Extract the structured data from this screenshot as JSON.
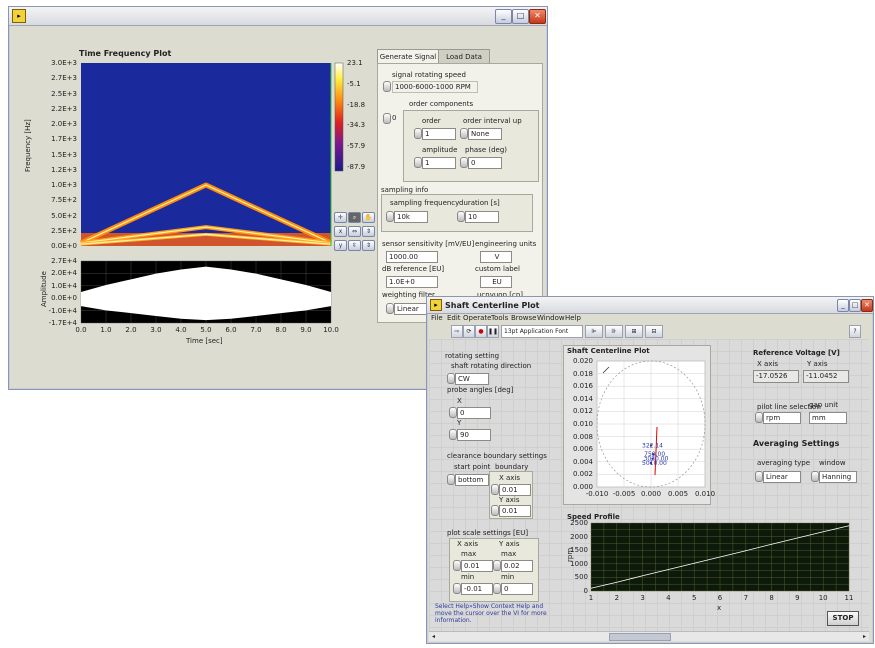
{
  "window1": {
    "plot_title": "Time Frequency Plot",
    "freq_axis_label": "Frequency [Hz]",
    "freq_ticks": [
      "3.0E+3",
      "2.7E+3",
      "2.5E+3",
      "2.2E+3",
      "2.0E+3",
      "1.7E+3",
      "1.5E+3",
      "1.2E+3",
      "1.0E+3",
      "7.5E+2",
      "5.0E+2",
      "2.5E+2",
      "0.0E+0"
    ],
    "colorbar_ticks": [
      "23.1",
      "-5.1",
      "-18.8",
      "-34.3",
      "-57.9",
      "-87.9"
    ],
    "amp_axis_label": "Amplitude",
    "amp_ticks": [
      "2.7E+4",
      "2.0E+4",
      "1.0E+4",
      "0.0E+0",
      "-1.0E+4",
      "-1.7E+4"
    ],
    "time_ticks": [
      "0.0",
      "1.0",
      "2.0",
      "3.0",
      "4.0",
      "5.0",
      "6.0",
      "7.0",
      "8.0",
      "9.0",
      "10.0"
    ],
    "time_axis_label": "Time [sec]",
    "tabs": [
      "Generate Signal",
      "Load Data"
    ],
    "signal_rotating_speed_label": "signal rotating speed",
    "signal_rotating_speed_value": "1000-6000-1000 RPM",
    "order_components_label": "order components",
    "order_index": "0",
    "order_label": "order",
    "order_value": "1",
    "order_interval_label": "order interval up",
    "order_interval_value": "None",
    "amplitude_label": "amplitude",
    "amplitude_value": "1",
    "phase_label": "phase (deg)",
    "phase_value": "0",
    "sampling_info_label": "sampling info",
    "sampling_frequency_label": "sampling frequency",
    "sampling_frequency_value": "10k",
    "duration_label": "duration [s]",
    "duration_value": "10",
    "sensor_sensitivity_label": "sensor sensitivity [mV/EU]",
    "sensor_sensitivity_value": "1000.00",
    "engineering_units_label": "engineering units",
    "engineering_units_value": "V",
    "db_reference_label": "dB reference [EU]",
    "db_reference_value": "1.0E+0",
    "custom_label_label": "custom label",
    "custom_label_value": "EU",
    "weighting_filter_label": "weighting filter",
    "weighting_filter_value": "Linear",
    "extra_cut_value": "ucnvuon [cn]"
  },
  "window2": {
    "title": "Shaft Centerline Plot",
    "menu": [
      "File",
      "Edit",
      "Operate",
      "Tools",
      "Browse",
      "Window",
      "Help"
    ],
    "font_select": "13pt Application Font",
    "rotating_setting_label": "rotating setting",
    "shaft_rotating_direction_label": "shaft rotating direction",
    "shaft_rotating_direction_value": "CW",
    "probe_angles_label": "probe angles [deg]",
    "probe_x_label": "X",
    "probe_x_value": "0",
    "probe_y_label": "Y",
    "probe_y_value": "90",
    "clearance_label": "clearance boundary settings",
    "start_point_label": "start point",
    "start_point_value": "bottom",
    "boundary_label": "boundary",
    "x_axis_small": "X axis",
    "x_axis_value": "0.01",
    "y_axis_small": "Y axis",
    "y_axis_value": "0.01",
    "plot_scale_label": "plot scale settings [EU]",
    "x_scale_label": "X axis",
    "y_scale_label": "Y axis",
    "max_label": "max",
    "min_label": "min",
    "x_max": "0.01",
    "x_min": "-0.01",
    "y_max": "0.02",
    "y_min": "0",
    "help_text": "Select Help»Show Context Help and move the cursor over the VI for more information.",
    "scp_title": "Shaft Centerline Plot",
    "scp_y_ticks": [
      "0.020",
      "0.018",
      "0.016",
      "0.014",
      "0.012",
      "0.010",
      "0.008",
      "0.006",
      "0.004",
      "0.002",
      "0.000"
    ],
    "scp_x_ticks": [
      "-0.010",
      "-0.005",
      "0.000",
      "0.005",
      "0.010"
    ],
    "scp_point_labels": [
      "5010.00",
      "3030.00",
      "750.00",
      "322.14"
    ],
    "ref_voltage_label": "Reference Voltage [V]",
    "ref_x_label": "X axis",
    "ref_y_label": "Y axis",
    "ref_x_value": "-17.0526",
    "ref_y_value": "-11.0452",
    "pilot_label": "pilot line selection",
    "pilot_value": "rpm",
    "gap_unit_label": "gap unit",
    "gap_unit_value": "mm",
    "averaging_label": "Averaging Settings",
    "averaging_type_label": "averaging type",
    "averaging_type_value": "Linear",
    "window_label": "window",
    "window_value": "Hanning",
    "speed_profile_title": "Speed Profile",
    "speed_y_label": "rpm",
    "speed_y_ticks": [
      "2500",
      "2000",
      "1500",
      "1000",
      "500",
      "0"
    ],
    "speed_x_ticks": [
      "1",
      "2",
      "3",
      "4",
      "5",
      "6",
      "7",
      "8",
      "9",
      "10",
      "11"
    ],
    "speed_x_label": "x",
    "stop_label": "STOP"
  },
  "chart_data": [
    {
      "type": "heatmap",
      "title": "Time Frequency Plot",
      "xlabel": "Time [sec]",
      "ylabel": "Frequency [Hz]",
      "xlim": [
        0,
        10
      ],
      "ylim": [
        0,
        3000
      ],
      "zlim": [
        -87.9,
        23.1
      ],
      "ridges": [
        {
          "x": [
            0,
            5,
            10
          ],
          "y": [
            50,
            1000,
            50
          ]
        },
        {
          "x": [
            0,
            5,
            10
          ],
          "y": [
            50,
            310,
            50
          ]
        },
        {
          "x": [
            0,
            5,
            10
          ],
          "y": [
            30,
            190,
            30
          ]
        }
      ]
    },
    {
      "type": "area",
      "xlabel": "Time [sec]",
      "ylabel": "Amplitude",
      "xlim": [
        0,
        10
      ],
      "ylim": [
        -17000,
        27000
      ],
      "x": [
        0,
        1,
        2,
        3,
        4,
        5,
        6,
        7,
        8,
        9,
        10
      ],
      "upper": [
        5000,
        10000,
        14000,
        18000,
        21000,
        23000,
        21000,
        18000,
        14000,
        10000,
        5000
      ],
      "lower": [
        -5000,
        -8000,
        -10000,
        -12000,
        -14000,
        -15000,
        -14000,
        -12000,
        -10000,
        -8000,
        -5000
      ]
    },
    {
      "type": "scatter",
      "title": "Shaft Centerline Plot",
      "xlim": [
        -0.01,
        0.01
      ],
      "ylim": [
        0,
        0.02
      ],
      "circle_radius": 0.01,
      "points": [
        {
          "x": 0.0,
          "y": 0.0038,
          "label": "5010.00"
        },
        {
          "x": 0.0003,
          "y": 0.0045,
          "label": "3030.00"
        },
        {
          "x": 0.0004,
          "y": 0.0052,
          "label": "750.00"
        },
        {
          "x": 0.0,
          "y": 0.0066,
          "label": "322.14"
        }
      ]
    },
    {
      "type": "line",
      "title": "Speed Profile",
      "ylabel": "rpm",
      "xlabel": "x",
      "xlim": [
        1,
        11
      ],
      "ylim": [
        0,
        2500
      ],
      "x": [
        1,
        2,
        3,
        4,
        5,
        6,
        7,
        8,
        9,
        10,
        11
      ],
      "values": [
        100,
        320,
        560,
        790,
        1020,
        1250,
        1480,
        1720,
        1950,
        2180,
        2400
      ]
    }
  ]
}
